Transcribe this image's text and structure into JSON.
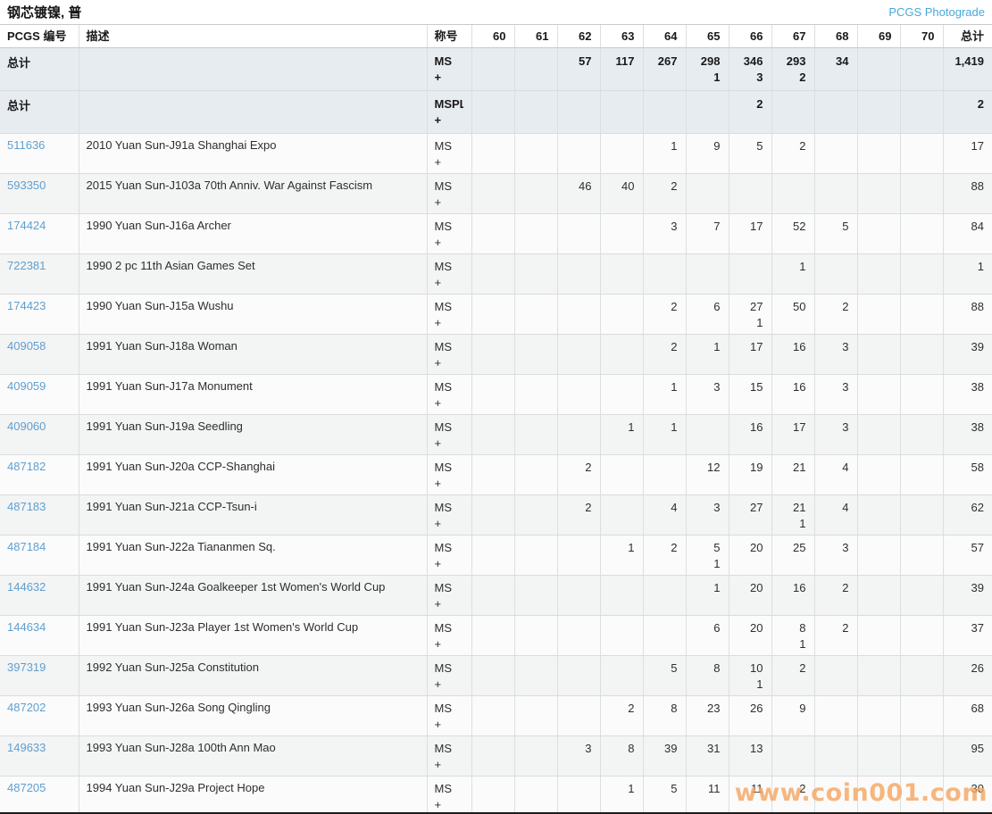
{
  "header": {
    "title": "钢芯镀镍, 普",
    "photograde_link_label": "PCGS Photograde"
  },
  "watermark": "www.coin001.com",
  "colors": {
    "photograde_link": "#47a9da",
    "pcgs_number_link": "#5f9fd0",
    "summary_row_bg": "#e7ecf1",
    "watermark_orange": "#f6a763"
  },
  "table": {
    "column_headers": [
      "PCGS 编号",
      "描述",
      "称号",
      "60",
      "61",
      "62",
      "63",
      "64",
      "65",
      "66",
      "67",
      "68",
      "69",
      "70",
      "总计"
    ],
    "grade_labels": [
      "60",
      "61",
      "62",
      "63",
      "64",
      "65",
      "66",
      "67",
      "68",
      "69",
      "70"
    ],
    "summary_rows": [
      {
        "label": "总计",
        "description": "",
        "designation": "MS",
        "designation_plus": "+",
        "grades": [
          "",
          "",
          "57",
          "117",
          "267",
          "298",
          "346",
          "293",
          "34",
          "",
          ""
        ],
        "plus_grades": [
          "",
          "",
          "",
          "",
          "",
          "1",
          "3",
          "2",
          "",
          "",
          ""
        ],
        "total": "1,419",
        "plus_total": ""
      },
      {
        "label": "总计",
        "description": "",
        "designation": "MSPL",
        "designation_plus": "+",
        "grades": [
          "",
          "",
          "",
          "",
          "",
          "",
          "2",
          "",
          "",
          "",
          ""
        ],
        "plus_grades": [
          "",
          "",
          "",
          "",
          "",
          "",
          "",
          "",
          "",
          "",
          ""
        ],
        "total": "2",
        "plus_total": ""
      }
    ],
    "rows": [
      {
        "pcgs_no": "511636",
        "description": "2010 Yuan Sun-J91a Shanghai Expo",
        "designation": "MS",
        "designation_plus": "+",
        "grades": [
          "",
          "",
          "",
          "",
          "1",
          "9",
          "5",
          "2",
          "",
          "",
          ""
        ],
        "plus_grades": [
          "",
          "",
          "",
          "",
          "",
          "",
          "",
          "",
          "",
          "",
          ""
        ],
        "total": "17",
        "plus_total": ""
      },
      {
        "pcgs_no": "593350",
        "description": "2015 Yuan Sun-J103a 70th Anniv. War Against Fascism",
        "designation": "MS",
        "designation_plus": "+",
        "grades": [
          "",
          "",
          "46",
          "40",
          "2",
          "",
          "",
          "",
          "",
          "",
          ""
        ],
        "plus_grades": [
          "",
          "",
          "",
          "",
          "",
          "",
          "",
          "",
          "",
          "",
          ""
        ],
        "total": "88",
        "plus_total": ""
      },
      {
        "pcgs_no": "174424",
        "description": "1990 Yuan Sun-J16a Archer",
        "designation": "MS",
        "designation_plus": "+",
        "grades": [
          "",
          "",
          "",
          "",
          "3",
          "7",
          "17",
          "52",
          "5",
          "",
          ""
        ],
        "plus_grades": [
          "",
          "",
          "",
          "",
          "",
          "",
          "",
          "",
          "",
          "",
          ""
        ],
        "total": "84",
        "plus_total": ""
      },
      {
        "pcgs_no": "722381",
        "description": "1990 2 pc 11th Asian Games Set",
        "designation": "MS",
        "designation_plus": "+",
        "grades": [
          "",
          "",
          "",
          "",
          "",
          "",
          "",
          "1",
          "",
          "",
          ""
        ],
        "plus_grades": [
          "",
          "",
          "",
          "",
          "",
          "",
          "",
          "",
          "",
          "",
          ""
        ],
        "total": "1",
        "plus_total": ""
      },
      {
        "pcgs_no": "174423",
        "description": "1990 Yuan Sun-J15a Wushu",
        "designation": "MS",
        "designation_plus": "+",
        "grades": [
          "",
          "",
          "",
          "",
          "2",
          "6",
          "27",
          "50",
          "2",
          "",
          ""
        ],
        "plus_grades": [
          "",
          "",
          "",
          "",
          "",
          "",
          "1",
          "",
          "",
          "",
          ""
        ],
        "total": "88",
        "plus_total": ""
      },
      {
        "pcgs_no": "409058",
        "description": "1991 Yuan Sun-J18a Woman",
        "designation": "MS",
        "designation_plus": "+",
        "grades": [
          "",
          "",
          "",
          "",
          "2",
          "1",
          "17",
          "16",
          "3",
          "",
          ""
        ],
        "plus_grades": [
          "",
          "",
          "",
          "",
          "",
          "",
          "",
          "",
          "",
          "",
          ""
        ],
        "total": "39",
        "plus_total": ""
      },
      {
        "pcgs_no": "409059",
        "description": "1991 Yuan Sun-J17a Monument",
        "designation": "MS",
        "designation_plus": "+",
        "grades": [
          "",
          "",
          "",
          "",
          "1",
          "3",
          "15",
          "16",
          "3",
          "",
          ""
        ],
        "plus_grades": [
          "",
          "",
          "",
          "",
          "",
          "",
          "",
          "",
          "",
          "",
          ""
        ],
        "total": "38",
        "plus_total": ""
      },
      {
        "pcgs_no": "409060",
        "description": "1991 Yuan Sun-J19a Seedling",
        "designation": "MS",
        "designation_plus": "+",
        "grades": [
          "",
          "",
          "",
          "1",
          "1",
          "",
          "16",
          "17",
          "3",
          "",
          ""
        ],
        "plus_grades": [
          "",
          "",
          "",
          "",
          "",
          "",
          "",
          "",
          "",
          "",
          ""
        ],
        "total": "38",
        "plus_total": ""
      },
      {
        "pcgs_no": "487182",
        "description": "1991 Yuan Sun-J20a CCP-Shanghai",
        "designation": "MS",
        "designation_plus": "+",
        "grades": [
          "",
          "",
          "2",
          "",
          "",
          "12",
          "19",
          "21",
          "4",
          "",
          ""
        ],
        "plus_grades": [
          "",
          "",
          "",
          "",
          "",
          "",
          "",
          "",
          "",
          "",
          ""
        ],
        "total": "58",
        "plus_total": ""
      },
      {
        "pcgs_no": "487183",
        "description": "1991 Yuan Sun-J21a CCP-Tsun-i",
        "designation": "MS",
        "designation_plus": "+",
        "grades": [
          "",
          "",
          "2",
          "",
          "4",
          "3",
          "27",
          "21",
          "4",
          "",
          ""
        ],
        "plus_grades": [
          "",
          "",
          "",
          "",
          "",
          "",
          "",
          "1",
          "",
          "",
          ""
        ],
        "total": "62",
        "plus_total": ""
      },
      {
        "pcgs_no": "487184",
        "description": "1991 Yuan Sun-J22a Tiananmen Sq.",
        "designation": "MS",
        "designation_plus": "+",
        "grades": [
          "",
          "",
          "",
          "1",
          "2",
          "5",
          "20",
          "25",
          "3",
          "",
          ""
        ],
        "plus_grades": [
          "",
          "",
          "",
          "",
          "",
          "1",
          "",
          "",
          "",
          "",
          ""
        ],
        "total": "57",
        "plus_total": ""
      },
      {
        "pcgs_no": "144632",
        "description": "1991 Yuan Sun-J24a Goalkeeper 1st Women's World Cup",
        "designation": "MS",
        "designation_plus": "+",
        "grades": [
          "",
          "",
          "",
          "",
          "",
          "1",
          "20",
          "16",
          "2",
          "",
          ""
        ],
        "plus_grades": [
          "",
          "",
          "",
          "",
          "",
          "",
          "",
          "",
          "",
          "",
          ""
        ],
        "total": "39",
        "plus_total": ""
      },
      {
        "pcgs_no": "144634",
        "description": "1991 Yuan Sun-J23a Player 1st Women's World Cup",
        "designation": "MS",
        "designation_plus": "+",
        "grades": [
          "",
          "",
          "",
          "",
          "",
          "6",
          "20",
          "8",
          "2",
          "",
          ""
        ],
        "plus_grades": [
          "",
          "",
          "",
          "",
          "",
          "",
          "",
          "1",
          "",
          "",
          ""
        ],
        "total": "37",
        "plus_total": ""
      },
      {
        "pcgs_no": "397319",
        "description": "1992 Yuan Sun-J25a Constitution",
        "designation": "MS",
        "designation_plus": "+",
        "grades": [
          "",
          "",
          "",
          "",
          "5",
          "8",
          "10",
          "2",
          "",
          "",
          ""
        ],
        "plus_grades": [
          "",
          "",
          "",
          "",
          "",
          "",
          "1",
          "",
          "",
          "",
          ""
        ],
        "total": "26",
        "plus_total": ""
      },
      {
        "pcgs_no": "487202",
        "description": "1993 Yuan Sun-J26a Song Qingling",
        "designation": "MS",
        "designation_plus": "+",
        "grades": [
          "",
          "",
          "",
          "2",
          "8",
          "23",
          "26",
          "9",
          "",
          "",
          ""
        ],
        "plus_grades": [
          "",
          "",
          "",
          "",
          "",
          "",
          "",
          "",
          "",
          "",
          ""
        ],
        "total": "68",
        "plus_total": ""
      },
      {
        "pcgs_no": "149633",
        "description": "1993 Yuan Sun-J28a 100th Ann Mao",
        "designation": "MS",
        "designation_plus": "+",
        "grades": [
          "",
          "",
          "3",
          "8",
          "39",
          "31",
          "13",
          "",
          "",
          "",
          ""
        ],
        "plus_grades": [
          "",
          "",
          "",
          "",
          "",
          "",
          "",
          "",
          "",
          "",
          ""
        ],
        "total": "95",
        "plus_total": ""
      },
      {
        "pcgs_no": "487205",
        "description": "1994 Yuan Sun-J29a Project Hope",
        "designation": "MS",
        "designation_plus": "+",
        "grades": [
          "",
          "",
          "",
          "1",
          "5",
          "11",
          "11",
          "2",
          "",
          "",
          ""
        ],
        "plus_grades": [
          "",
          "",
          "",
          "",
          "",
          "",
          "",
          "",
          "",
          "",
          ""
        ],
        "total": "30",
        "plus_total": ""
      }
    ]
  }
}
